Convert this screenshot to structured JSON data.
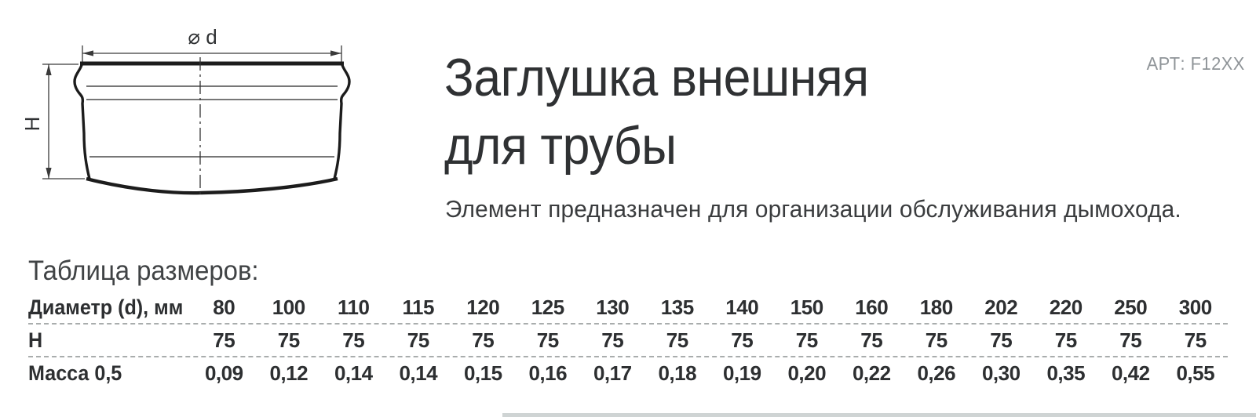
{
  "product": {
    "article": "АРТ: F12XX",
    "title_line1": "Заглушка внешняя",
    "title_line2": "для трубы",
    "description": "Элемент предназначен для организации обслуживания дымохода."
  },
  "drawing": {
    "diameter_label": "⌀ d",
    "height_label": "Н"
  },
  "size_table": {
    "heading": "Таблица размеров:",
    "rows": [
      {
        "label": "Диаметр (d), мм",
        "values": [
          "80",
          "100",
          "110",
          "115",
          "120",
          "125",
          "130",
          "135",
          "140",
          "150",
          "160",
          "180",
          "202",
          "220",
          "250",
          "300"
        ]
      },
      {
        "label": "Н",
        "values": [
          "75",
          "75",
          "75",
          "75",
          "75",
          "75",
          "75",
          "75",
          "75",
          "75",
          "75",
          "75",
          "75",
          "75",
          "75",
          "75"
        ]
      },
      {
        "label": "Масса 0,5",
        "values": [
          "0,09",
          "0,12",
          "0,14",
          "0,14",
          "0,15",
          "0,16",
          "0,17",
          "0,18",
          "0,19",
          "0,20",
          "0,22",
          "0,26",
          "0,30",
          "0,35",
          "0,42",
          "0,55"
        ]
      }
    ]
  }
}
